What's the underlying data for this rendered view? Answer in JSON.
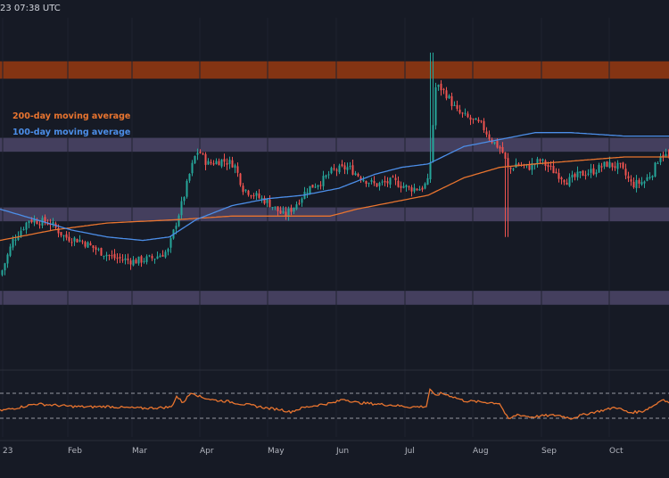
{
  "header": {
    "timestamp": "23 07:38 UTC"
  },
  "colors": {
    "background": "#161a25",
    "up_candle": "#26a69a",
    "down_candle": "#ef5350",
    "ma200": "#e8742f",
    "ma100": "#4c8ee8",
    "resistance_zone": "#8a3612",
    "support_zone": "#4c4668",
    "oscillator_line": "#e8742f",
    "dashed_level": "#9598a1"
  },
  "chart_data": [
    {
      "type": "candlestick",
      "title": "",
      "xlabel": "",
      "ylabel": "",
      "legend": [
        {
          "label": "200-day moving average",
          "color": "#e8742f"
        },
        {
          "label": "100-day moving average",
          "color": "#4c8ee8"
        }
      ],
      "x_ticks": [
        "23",
        "Feb",
        "Mar",
        "Apr",
        "May",
        "Jun",
        "Jul",
        "Aug",
        "Sep",
        "Oct"
      ],
      "zones": [
        {
          "kind": "resistance",
          "y_low": 82.5,
          "y_high": 87.5
        },
        {
          "kind": "support",
          "y_low": 61.5,
          "y_high": 65.5
        },
        {
          "kind": "support",
          "y_low": 41.5,
          "y_high": 45.5
        },
        {
          "kind": "support",
          "y_low": 17.5,
          "y_high": 21.5
        }
      ],
      "ylim": [
        0,
        100
      ],
      "close_keypoints": [
        [
          0,
          26
        ],
        [
          14,
          36
        ],
        [
          32,
          42
        ],
        [
          56,
          41
        ],
        [
          72,
          37
        ],
        [
          90,
          36
        ],
        [
          110,
          33
        ],
        [
          128,
          31
        ],
        [
          150,
          30
        ],
        [
          172,
          31
        ],
        [
          188,
          33
        ],
        [
          198,
          42
        ],
        [
          205,
          48
        ],
        [
          212,
          55
        ],
        [
          218,
          60
        ],
        [
          222,
          62
        ],
        [
          232,
          58
        ],
        [
          248,
          59
        ],
        [
          262,
          58
        ],
        [
          272,
          51
        ],
        [
          285,
          49
        ],
        [
          300,
          47
        ],
        [
          318,
          43
        ],
        [
          330,
          46
        ],
        [
          345,
          51
        ],
        [
          360,
          53
        ],
        [
          372,
          56
        ],
        [
          390,
          57
        ],
        [
          405,
          54
        ],
        [
          420,
          52
        ],
        [
          440,
          53
        ],
        [
          458,
          51
        ],
        [
          472,
          51
        ],
        [
          480,
          53
        ],
        [
          484,
          64
        ],
        [
          487,
          80
        ],
        [
          493,
          80
        ],
        [
          500,
          78
        ],
        [
          512,
          73
        ],
        [
          525,
          71
        ],
        [
          540,
          69
        ],
        [
          550,
          65
        ],
        [
          562,
          62
        ],
        [
          570,
          56
        ],
        [
          578,
          58
        ],
        [
          592,
          57
        ],
        [
          605,
          59
        ],
        [
          620,
          56
        ],
        [
          636,
          53
        ],
        [
          650,
          55
        ],
        [
          665,
          56
        ],
        [
          680,
          58
        ],
        [
          695,
          57
        ],
        [
          708,
          52
        ],
        [
          722,
          53
        ],
        [
          732,
          56
        ],
        [
          740,
          61
        ],
        [
          749,
          60
        ]
      ],
      "ma200_keypoints": [
        [
          0,
          36
        ],
        [
          60,
          39
        ],
        [
          120,
          41
        ],
        [
          200,
          42
        ],
        [
          260,
          43
        ],
        [
          330,
          43
        ],
        [
          370,
          43
        ],
        [
          400,
          45
        ],
        [
          440,
          47
        ],
        [
          480,
          49
        ],
        [
          520,
          54
        ],
        [
          560,
          57
        ],
        [
          600,
          58
        ],
        [
          650,
          59
        ],
        [
          700,
          60
        ],
        [
          749,
          60
        ]
      ],
      "ma100_keypoints": [
        [
          0,
          45
        ],
        [
          40,
          42
        ],
        [
          80,
          39
        ],
        [
          120,
          37
        ],
        [
          160,
          36
        ],
        [
          190,
          37
        ],
        [
          220,
          42
        ],
        [
          260,
          46
        ],
        [
          300,
          48
        ],
        [
          340,
          49
        ],
        [
          380,
          51
        ],
        [
          420,
          55
        ],
        [
          450,
          57
        ],
        [
          480,
          58
        ],
        [
          520,
          63
        ],
        [
          560,
          65
        ],
        [
          600,
          67
        ],
        [
          640,
          67
        ],
        [
          700,
          66
        ],
        [
          749,
          66
        ]
      ]
    },
    {
      "type": "line",
      "title": "",
      "series_name": "",
      "ylim": [
        0,
        100
      ],
      "levels": [
        70,
        30
      ],
      "keypoints": [
        [
          0,
          42
        ],
        [
          20,
          47
        ],
        [
          40,
          53
        ],
        [
          60,
          51
        ],
        [
          80,
          49
        ],
        [
          100,
          48
        ],
        [
          120,
          49
        ],
        [
          140,
          47
        ],
        [
          160,
          46
        ],
        [
          180,
          47
        ],
        [
          192,
          48
        ],
        [
          198,
          65
        ],
        [
          205,
          55
        ],
        [
          215,
          72
        ],
        [
          225,
          64
        ],
        [
          240,
          59
        ],
        [
          255,
          57
        ],
        [
          270,
          53
        ],
        [
          285,
          50
        ],
        [
          300,
          46
        ],
        [
          315,
          44
        ],
        [
          325,
          40
        ],
        [
          340,
          47
        ],
        [
          360,
          52
        ],
        [
          375,
          55
        ],
        [
          385,
          61
        ],
        [
          400,
          55
        ],
        [
          420,
          53
        ],
        [
          440,
          51
        ],
        [
          460,
          48
        ],
        [
          478,
          49
        ],
        [
          482,
          77
        ],
        [
          487,
          66
        ],
        [
          495,
          70
        ],
        [
          505,
          66
        ],
        [
          520,
          58
        ],
        [
          540,
          56
        ],
        [
          560,
          54
        ],
        [
          570,
          28
        ],
        [
          580,
          36
        ],
        [
          595,
          32
        ],
        [
          610,
          34
        ],
        [
          625,
          35
        ],
        [
          640,
          30
        ],
        [
          660,
          38
        ],
        [
          680,
          44
        ],
        [
          690,
          48
        ],
        [
          705,
          39
        ],
        [
          720,
          41
        ],
        [
          735,
          52
        ],
        [
          742,
          61
        ],
        [
          749,
          55
        ]
      ]
    }
  ]
}
